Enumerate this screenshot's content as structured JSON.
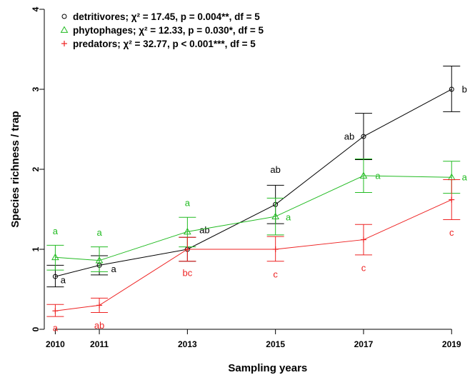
{
  "chart_data": {
    "type": "line",
    "xlabel": "Sampling years",
    "ylabel": "Species richness / trap",
    "xlim": [
      2009.75,
      2019.45
    ],
    "ylim": [
      0,
      4
    ],
    "x_ticks": [
      "2010",
      "2011",
      "2013",
      "2015",
      "2017",
      "2019"
    ],
    "y_ticks": [
      "0",
      "1",
      "2",
      "3",
      "4"
    ],
    "legend_placement": "top-left",
    "series": [
      {
        "name": "detritivores",
        "legend_stat": "χ² = 17.45, p = 0.004**, df = 5",
        "color": "#000000",
        "marker": "circle",
        "x": [
          2010,
          2011,
          2013,
          2015,
          2017,
          2019
        ],
        "y": [
          0.66,
          0.8,
          1.0,
          1.56,
          2.41,
          3.0
        ],
        "err_low": [
          0.53,
          0.68,
          0.85,
          1.32,
          2.12,
          2.72
        ],
        "err_high": [
          0.8,
          0.92,
          1.15,
          1.8,
          2.7,
          3.29
        ],
        "letters": [
          "a",
          "a",
          "ab",
          "ab",
          "ab",
          "b"
        ]
      },
      {
        "name": "phytophages",
        "legend_stat": "χ² = 12.33, p = 0.030*, df = 5",
        "color": "#22bb22",
        "marker": "triangle",
        "x": [
          2010,
          2011,
          2013,
          2015,
          2017,
          2019
        ],
        "y": [
          0.9,
          0.86,
          1.22,
          1.41,
          1.92,
          1.9
        ],
        "err_low": [
          0.74,
          0.72,
          1.03,
          1.18,
          1.71,
          1.7
        ],
        "err_high": [
          1.05,
          1.03,
          1.4,
          1.64,
          2.13,
          2.1
        ],
        "letters": [
          "a",
          "a",
          "a",
          "a",
          "a",
          "a"
        ]
      },
      {
        "name": "predators",
        "legend_stat": "χ² = 32.77, p < 0.001***, df = 5",
        "color": "#ee2222",
        "marker": "plus",
        "x": [
          2010,
          2011,
          2013,
          2015,
          2017,
          2019
        ],
        "y": [
          0.23,
          0.3,
          1.0,
          1.0,
          1.12,
          1.62
        ],
        "err_low": [
          0.16,
          0.21,
          0.85,
          0.85,
          0.93,
          1.37
        ],
        "err_high": [
          0.31,
          0.39,
          1.15,
          1.16,
          1.31,
          1.87
        ],
        "letters": [
          "a",
          "ab",
          "bc",
          "c",
          "c",
          "c"
        ]
      }
    ]
  }
}
